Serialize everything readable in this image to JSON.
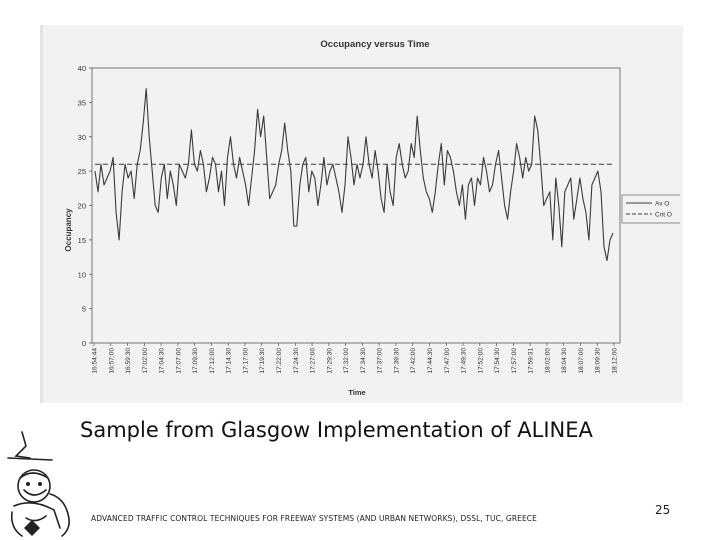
{
  "slide": {
    "caption": "Sample from Glasgow Implementation of ALINEA",
    "footer": "ADVANCED TRAFFIC CONTROL TECHNIQUES FOR FREEWAY SYSTEMS (AND URBAN NETWORKS), DSSL, TUC, GREECE",
    "page_number": "25"
  },
  "colors": {
    "scan_background": "#f2f2f2",
    "line": "#3a3a3a",
    "text": "#111111"
  },
  "chart_data": {
    "type": "line",
    "title": "Occupancy versus Time",
    "xlabel": "Time",
    "ylabel": "Occupancy",
    "ylim": [
      0,
      40
    ],
    "yticks": [
      0,
      5,
      10,
      15,
      20,
      25,
      30,
      35,
      40
    ],
    "grid": false,
    "legend_position": "right",
    "x_tick_labels": [
      "16:54:44",
      "16:57:00",
      "16:59:30",
      "17:02:00",
      "17:04:30",
      "17:07:00",
      "17:09:30",
      "17:12:00",
      "17:14:30",
      "17:17:00",
      "17:19:30",
      "17:22:00",
      "17:24:30",
      "17:27:00",
      "17:29:30",
      "17:32:00",
      "17:34:30",
      "17:37:00",
      "17:39:30",
      "17:42:00",
      "17:44:30",
      "17:47:00",
      "17:49:30",
      "17:52:00",
      "17:54:30",
      "17:57:00",
      "17:59:31",
      "18:02:00",
      "18:04:30",
      "18:07:00",
      "18:09:30",
      "18:12:00"
    ],
    "series": [
      {
        "name": "Av O",
        "style": "solid",
        "values": [
          25,
          22,
          26,
          23,
          24,
          25,
          27,
          19,
          15,
          22,
          26,
          24,
          25,
          21,
          26,
          28,
          32,
          37,
          30,
          25,
          20,
          19,
          24,
          26,
          21,
          25,
          23,
          20,
          26,
          25,
          24,
          26,
          31,
          26,
          25,
          28,
          26,
          22,
          24,
          27,
          26,
          22,
          25,
          20,
          27,
          30,
          26,
          24,
          27,
          25,
          23,
          20,
          24,
          28,
          34,
          30,
          33,
          27,
          21,
          22,
          23,
          26,
          28,
          32,
          28,
          25,
          17,
          17,
          23,
          26,
          27,
          22,
          25,
          24,
          20,
          23,
          27,
          23,
          25,
          26,
          24,
          22,
          19,
          23,
          30,
          27,
          23,
          26,
          24,
          26,
          30,
          26,
          24,
          28,
          25,
          21,
          19,
          26,
          22,
          20,
          27,
          29,
          26,
          24,
          25,
          29,
          27,
          33,
          28,
          24,
          22,
          21,
          19,
          22,
          26,
          29,
          23,
          28,
          27,
          25,
          22,
          20,
          23,
          18,
          23,
          24,
          20,
          24,
          23,
          27,
          25,
          22,
          23,
          26,
          28,
          24,
          20,
          18,
          22,
          25,
          29,
          27,
          24,
          27,
          25,
          26,
          33,
          31,
          26,
          20,
          21,
          22,
          15,
          24,
          20,
          14,
          22,
          23,
          24,
          18,
          21,
          24,
          21,
          19,
          15,
          23,
          24,
          25,
          22,
          14,
          12,
          15,
          16
        ]
      },
      {
        "name": "Crit O",
        "style": "dashed",
        "values": [
          26,
          26
        ]
      }
    ]
  }
}
